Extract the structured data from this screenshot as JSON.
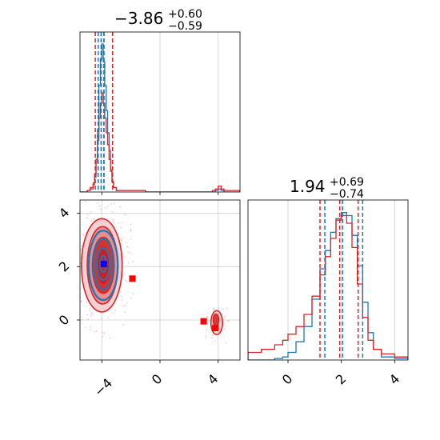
{
  "chart_data": {
    "type": "corner",
    "parameters": [
      {
        "title": {
          "median": "−3.86",
          "plus": "+0.60",
          "minus": "−0.59"
        },
        "range": [
          -5.5,
          5.5
        ],
        "ticks": [
          {
            "value": -4,
            "label": "−4"
          },
          {
            "value": 0,
            "label": "0"
          },
          {
            "value": 4,
            "label": "4"
          }
        ],
        "quantiles": {
          "red": [
            -4.45,
            -3.86,
            -3.26
          ],
          "blue": [
            -4.25,
            -4.05,
            -3.85
          ]
        },
        "hist_x": [
          -5.5,
          -5.0,
          -4.8,
          -4.6,
          -4.5,
          -4.4,
          -4.3,
          -4.2,
          -4.1,
          -4.0,
          -3.9,
          -3.8,
          -3.7,
          -3.6,
          -3.5,
          -3.4,
          -3.3,
          -3.2,
          -3.0,
          -2.5,
          -1.0,
          2.0,
          3.6,
          3.8,
          4.0,
          4.2,
          4.4,
          5.5
        ],
        "hist_blue": [
          0,
          0.01,
          0.02,
          0.05,
          0.1,
          0.2,
          0.42,
          0.72,
          0.9,
          1.0,
          0.88,
          0.72,
          0.55,
          0.4,
          0.28,
          0.15,
          0.07,
          0.03,
          0.01,
          0.01,
          0,
          0,
          0,
          0.01,
          0.02,
          0.01,
          0,
          0
        ],
        "hist_red": [
          0,
          0.01,
          0.03,
          0.06,
          0.12,
          0.22,
          0.35,
          0.5,
          0.6,
          0.67,
          0.6,
          0.5,
          0.4,
          0.32,
          0.22,
          0.14,
          0.07,
          0.03,
          0.01,
          0.01,
          0,
          0,
          0.01,
          0.02,
          0.04,
          0.02,
          0.01,
          0
        ]
      },
      {
        "title": {
          "median": "1.94",
          "plus": "+0.69",
          "minus": "−0.74"
        },
        "range": [
          -1.5,
          4.5
        ],
        "ticks": [
          {
            "value": 0,
            "label": "0"
          },
          {
            "value": 2,
            "label": "2"
          },
          {
            "value": 4,
            "label": "4"
          }
        ],
        "quantiles": {
          "red": [
            1.2,
            1.94,
            2.63
          ],
          "blue": [
            1.38,
            2.05,
            2.8
          ]
        },
        "hist_x": [
          -1.5,
          -1.0,
          -0.5,
          -0.2,
          0.0,
          0.3,
          0.6,
          0.9,
          1.2,
          1.4,
          1.6,
          1.8,
          2.0,
          2.2,
          2.4,
          2.6,
          2.8,
          3.0,
          3.2,
          3.5,
          4.0,
          4.5
        ],
        "hist_blue": [
          0.0,
          0.0,
          0.01,
          0.02,
          0.05,
          0.12,
          0.22,
          0.4,
          0.6,
          0.72,
          0.84,
          0.93,
          0.97,
          0.95,
          0.82,
          0.62,
          0.38,
          0.18,
          0.07,
          0.02,
          0.01,
          0.0
        ],
        "hist_red": [
          0.05,
          0.07,
          0.1,
          0.13,
          0.17,
          0.22,
          0.3,
          0.42,
          0.56,
          0.68,
          0.8,
          0.92,
          0.95,
          0.9,
          0.74,
          0.5,
          0.28,
          0.13,
          0.07,
          0.04,
          0.02,
          0.01
        ]
      }
    ],
    "joint": {
      "markers": [
        {
          "x": -3.86,
          "y": 2.1,
          "color": "blue"
        },
        {
          "x": -1.9,
          "y": 1.55,
          "color": "red"
        },
        {
          "x": 3.0,
          "y": -0.05,
          "color": "red"
        },
        {
          "x": 3.8,
          "y": -0.3,
          "color": "red"
        }
      ],
      "red_contours": [
        {
          "cx": -4.0,
          "cy": 2.05,
          "rx": 1.4,
          "ry": 1.75,
          "level": "outer"
        },
        {
          "cx": -3.95,
          "cy": 2.05,
          "rx": 1.05,
          "ry": 1.45,
          "level": "mid"
        },
        {
          "cx": -3.9,
          "cy": 2.05,
          "rx": 0.75,
          "ry": 1.05,
          "level": "inner"
        },
        {
          "cx": -3.9,
          "cy": 2.05,
          "rx": 0.45,
          "ry": 0.7,
          "level": "core"
        },
        {
          "cx": 3.9,
          "cy": -0.1,
          "rx": 0.4,
          "ry": 0.45,
          "level": "outer"
        },
        {
          "cx": 3.85,
          "cy": 0.0,
          "rx": 0.2,
          "ry": 0.22,
          "level": "inner"
        }
      ],
      "blue_contours": [
        {
          "cx": -3.9,
          "cy": 2.05,
          "rx": 1.0,
          "ry": 1.3
        },
        {
          "cx": -3.9,
          "cy": 2.1,
          "rx": 0.7,
          "ry": 0.95
        },
        {
          "cx": -3.9,
          "cy": 2.1,
          "rx": 0.45,
          "ry": 0.6
        },
        {
          "cx": -3.9,
          "cy": 2.1,
          "rx": 0.2,
          "ry": 0.3
        }
      ],
      "grid": true
    },
    "colors": {
      "red": "#d62728",
      "blue": "#1f77b4",
      "red_fill": "#e8868a",
      "red_fill_light": "#f4c9cb"
    }
  }
}
